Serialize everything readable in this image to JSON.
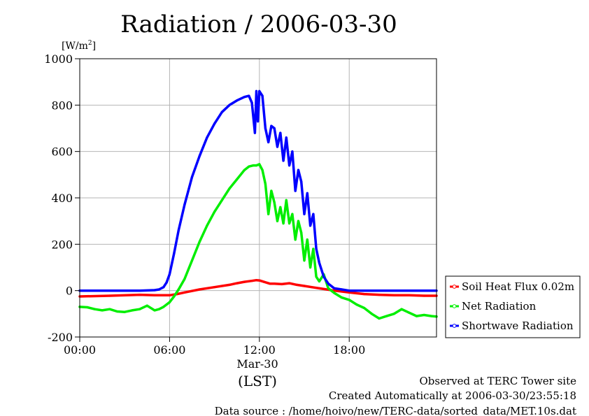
{
  "chart_data": {
    "type": "line",
    "title": "Radiation / 2006-03-30",
    "ylabel": "[W/m²]",
    "ylabel_base": "[W/m",
    "ylabel_sup": "2",
    "ylabel_end": "]",
    "ylim": [
      -200,
      1000
    ],
    "yticks": [
      -200,
      0,
      200,
      400,
      600,
      800,
      1000
    ],
    "ytick_labels": [
      "-200",
      "0",
      "200",
      "400",
      "600",
      "800",
      "1000"
    ],
    "xlim": [
      0,
      23.83
    ],
    "xticks": [
      0,
      6,
      12,
      18
    ],
    "xtick_labels": [
      "00:00",
      "06:00",
      "12:00",
      "18:00"
    ],
    "xdate_label": "Mar-30",
    "xlabel": "(LST)",
    "grid": true,
    "legend_position": "right",
    "series": [
      {
        "name": "Soil Heat Flux 0.02m",
        "color": "#ff0000",
        "x": [
          0,
          2,
          4,
          5,
          6,
          6.5,
          7,
          8,
          9,
          10,
          10.5,
          11,
          11.5,
          11.8,
          12,
          12.3,
          12.7,
          13,
          13.5,
          14,
          14.5,
          15,
          15.5,
          16,
          16.5,
          17,
          18,
          19,
          20,
          21,
          22,
          23,
          23.83
        ],
        "values": [
          -25,
          -22,
          -18,
          -20,
          -20,
          -15,
          -8,
          5,
          15,
          25,
          32,
          38,
          42,
          45,
          44,
          38,
          30,
          30,
          28,
          32,
          25,
          20,
          15,
          10,
          5,
          0,
          -8,
          -15,
          -18,
          -20,
          -20,
          -22,
          -22
        ]
      },
      {
        "name": "Net Radiation",
        "color": "#00ee00",
        "x": [
          0,
          0.5,
          1,
          1.5,
          2,
          2.5,
          3,
          3.5,
          4,
          4.5,
          5,
          5.3,
          5.6,
          6,
          6.3,
          6.6,
          7,
          7.5,
          8,
          8.5,
          9,
          9.5,
          10,
          10.5,
          11,
          11.3,
          11.6,
          11.8,
          12,
          12.2,
          12.4,
          12.6,
          12.8,
          13,
          13.2,
          13.4,
          13.6,
          13.8,
          14,
          14.2,
          14.4,
          14.6,
          14.8,
          15,
          15.2,
          15.4,
          15.6,
          15.8,
          16,
          16.3,
          16.6,
          17,
          17.5,
          18,
          18.5,
          19,
          19.5,
          20,
          20.5,
          21,
          21.5,
          22,
          22.5,
          23,
          23.5,
          23.83
        ],
        "values": [
          -70,
          -72,
          -80,
          -85,
          -80,
          -90,
          -92,
          -85,
          -80,
          -65,
          -85,
          -80,
          -70,
          -50,
          -25,
          5,
          50,
          130,
          210,
          280,
          340,
          390,
          440,
          480,
          520,
          535,
          540,
          540,
          545,
          520,
          460,
          330,
          430,
          380,
          300,
          360,
          290,
          390,
          290,
          330,
          220,
          300,
          250,
          130,
          220,
          100,
          180,
          60,
          40,
          70,
          10,
          -10,
          -30,
          -40,
          -60,
          -75,
          -100,
          -120,
          -110,
          -100,
          -80,
          -95,
          -110,
          -105,
          -110,
          -112
        ]
      },
      {
        "name": "Shortwave Radiation",
        "color": "#0000ff",
        "x": [
          0,
          1,
          2,
          3,
          4,
          5,
          5.3,
          5.6,
          5.8,
          6,
          6.3,
          6.6,
          7,
          7.5,
          8,
          8.5,
          9,
          9.5,
          10,
          10.5,
          11,
          11.3,
          11.5,
          11.7,
          11.8,
          11.9,
          12,
          12.2,
          12.4,
          12.6,
          12.8,
          13,
          13.2,
          13.4,
          13.6,
          13.8,
          14,
          14.2,
          14.4,
          14.6,
          14.8,
          15,
          15.2,
          15.4,
          15.6,
          15.8,
          16,
          16.3,
          16.6,
          17,
          17.5,
          18,
          19,
          20,
          21,
          22,
          23,
          23.83
        ],
        "values": [
          0,
          0,
          0,
          0,
          0,
          2,
          5,
          15,
          35,
          70,
          160,
          260,
          370,
          490,
          580,
          660,
          720,
          770,
          800,
          820,
          835,
          840,
          810,
          680,
          860,
          730,
          860,
          840,
          700,
          640,
          710,
          700,
          620,
          680,
          560,
          660,
          540,
          600,
          430,
          520,
          470,
          330,
          420,
          280,
          330,
          180,
          120,
          60,
          30,
          10,
          5,
          0,
          0,
          0,
          0,
          0,
          0,
          0
        ]
      }
    ]
  },
  "footer": {
    "line1": "Observed at TERC Tower site",
    "line2": "Created Automatically at 2006-03-30/23:55:18",
    "line3": "Data source : /home/hoivo/new/TERC-data/sorted_data/MET.10s.dat"
  }
}
